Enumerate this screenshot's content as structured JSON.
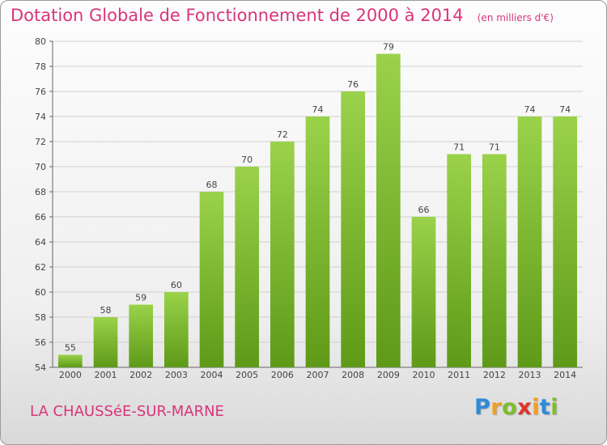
{
  "header": {
    "title": "Dotation Globale de Fonctionnement de 2000 à 2014",
    "unit_note": "(en milliers d'€)"
  },
  "footer": {
    "commune": "LA CHAUSSéE-SUR-MARNE",
    "logo": {
      "letters": [
        "P",
        "r",
        "o",
        "x",
        "i",
        "t",
        "i"
      ],
      "colors": [
        "#2f8ad8",
        "#f0a020",
        "#7cbf2a",
        "#e0332b",
        "#f0a020",
        "#2f8ad8",
        "#7cbf2a"
      ]
    }
  },
  "chart_data": {
    "type": "bar",
    "categories": [
      "2000",
      "2001",
      "2002",
      "2003",
      "2004",
      "2005",
      "2006",
      "2007",
      "2008",
      "2009",
      "2010",
      "2011",
      "2012",
      "2013",
      "2014"
    ],
    "values": [
      55,
      58,
      59,
      60,
      68,
      70,
      72,
      74,
      76,
      79,
      66,
      71,
      71,
      74,
      74
    ],
    "data_labels": [
      "55",
      "58",
      "59",
      "60",
      "68",
      "70",
      "72",
      "74",
      "76",
      "79",
      "66",
      "71",
      "71",
      "74",
      "74"
    ],
    "y_ticks": [
      54,
      56,
      58,
      60,
      62,
      64,
      66,
      68,
      70,
      72,
      74,
      76,
      78,
      80
    ],
    "y_tick_labels": [
      "54",
      "56",
      "58",
      "60",
      "62",
      "64",
      "66",
      "68",
      "70",
      "72",
      "74",
      "76",
      "78",
      "80"
    ],
    "ylim": [
      54,
      80
    ],
    "grid": true,
    "bar_color_light": "#9ad24a",
    "bar_color_dark": "#5e9a18",
    "grid_color": "#d0d0d0"
  }
}
